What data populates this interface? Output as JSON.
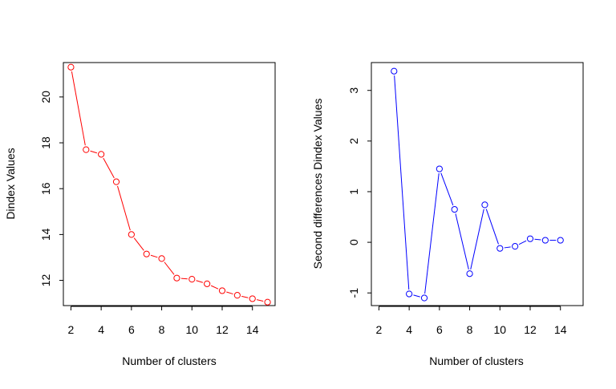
{
  "chart_data": [
    {
      "type": "line",
      "title": "",
      "xlabel": "Number of clusters",
      "ylabel": "Dindex Values",
      "xlim": [
        1.5,
        15.5
      ],
      "ylim": [
        10.9,
        21.5
      ],
      "x_ticks": [
        "2",
        "4",
        "6",
        "8",
        "10",
        "12",
        "14"
      ],
      "y_ticks": [
        "12",
        "14",
        "16",
        "18",
        "20"
      ],
      "color": "#ff0000",
      "series": [
        {
          "name": "",
          "x": [
            2,
            3,
            4,
            5,
            6,
            7,
            8,
            9,
            10,
            11,
            12,
            13,
            14,
            15
          ],
          "y": [
            21.3,
            17.7,
            17.5,
            16.3,
            14.0,
            13.15,
            12.95,
            12.1,
            12.05,
            11.85,
            11.55,
            11.35,
            11.2,
            11.05
          ]
        }
      ]
    },
    {
      "type": "line",
      "title": "",
      "xlabel": "Number of clusters",
      "ylabel": "Second differences Dindex Values",
      "xlim": [
        1.5,
        15.5
      ],
      "ylim": [
        -1.25,
        3.55
      ],
      "x_ticks": [
        "2",
        "4",
        "6",
        "8",
        "10",
        "12",
        "14"
      ],
      "y_ticks": [
        "-1",
        "0",
        "1",
        "2",
        "3"
      ],
      "color": "#0000ff",
      "series": [
        {
          "name": "",
          "x": [
            3,
            4,
            5,
            6,
            7,
            8,
            9,
            10,
            11,
            12,
            13,
            14
          ],
          "y": [
            3.38,
            -1.02,
            -1.1,
            1.45,
            0.65,
            -0.62,
            0.74,
            -0.12,
            -0.08,
            0.07,
            0.04,
            0.04
          ]
        }
      ]
    }
  ]
}
